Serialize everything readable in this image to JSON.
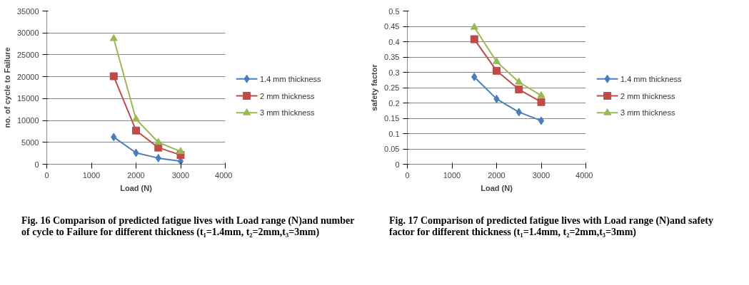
{
  "chart_data": [
    {
      "type": "line",
      "xlabel": "Load (N)",
      "ylabel": "no. of cycle to Failure",
      "x": [
        1500,
        2000,
        2500,
        3000
      ],
      "series": [
        {
          "name": "1.4 mm thickness",
          "color": "#4a7ebb",
          "marker": "diamond",
          "values": [
            6200,
            2600,
            1400,
            700
          ]
        },
        {
          "name": "2 mm thickness",
          "color": "#be4b48",
          "marker": "square",
          "values": [
            20100,
            7700,
            3800,
            2100
          ]
        },
        {
          "name": "3 mm  thickness",
          "color": "#98b954",
          "marker": "triangle",
          "values": [
            28700,
            10300,
            5000,
            2900
          ]
        }
      ],
      "xlim": [
        0,
        4000
      ],
      "xticks": [
        0,
        1000,
        2000,
        3000,
        4000
      ],
      "ylim": [
        0,
        35000
      ],
      "yticks": [
        0,
        5000,
        10000,
        15000,
        20000,
        25000,
        30000,
        35000
      ],
      "grid": "y",
      "legend": "right",
      "annotations": [
        "Fig. 16 Comparison of predicted fatigue lives with Load range (N)and number of cycle to Failure for different thickness (t₁=1.4mm, t₂=2mm,t₃=3mm)"
      ]
    },
    {
      "type": "line",
      "xlabel": "Load (N)",
      "ylabel": "safety factor",
      "x": [
        1500,
        2000,
        2500,
        3000
      ],
      "series": [
        {
          "name": "1.4 mm thickness",
          "color": "#4a7ebb",
          "marker": "diamond",
          "values": [
            0.285,
            0.213,
            0.17,
            0.142
          ]
        },
        {
          "name": "2 mm thickness",
          "color": "#be4b48",
          "marker": "square",
          "values": [
            0.408,
            0.305,
            0.244,
            0.203
          ]
        },
        {
          "name": "3 mm  thickness",
          "color": "#98b954",
          "marker": "triangle",
          "values": [
            0.447,
            0.335,
            0.268,
            0.224
          ]
        }
      ],
      "xlim": [
        0,
        4000
      ],
      "xticks": [
        0,
        1000,
        2000,
        3000,
        4000
      ],
      "ylim": [
        0,
        0.5
      ],
      "yticks": [
        0,
        0.05,
        0.1,
        0.15,
        0.2,
        0.25,
        0.3,
        0.35,
        0.4,
        0.45,
        0.5
      ],
      "grid": "y",
      "legend": "right",
      "annotations": [
        "Fig. 17 Comparison of predicted fatigue lives with Load range (N)and safety factor for different thickness (t₁=1.4mm, t₂=2mm,t₃=3mm)"
      ]
    }
  ]
}
